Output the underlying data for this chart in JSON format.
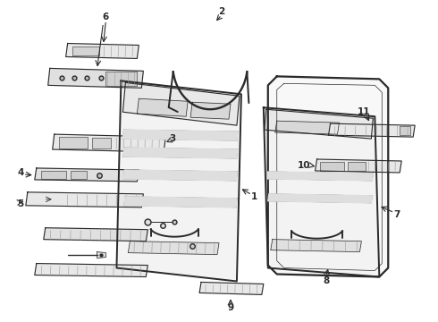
{
  "bg_color": "#ffffff",
  "line_color": "#2a2a2a",
  "label_color": "#111111",
  "figsize": [
    4.9,
    3.6
  ],
  "dpi": 100,
  "lw_main": 1.4,
  "lw_thin": 0.8,
  "lw_detail": 0.5,
  "font_size": 7.5
}
